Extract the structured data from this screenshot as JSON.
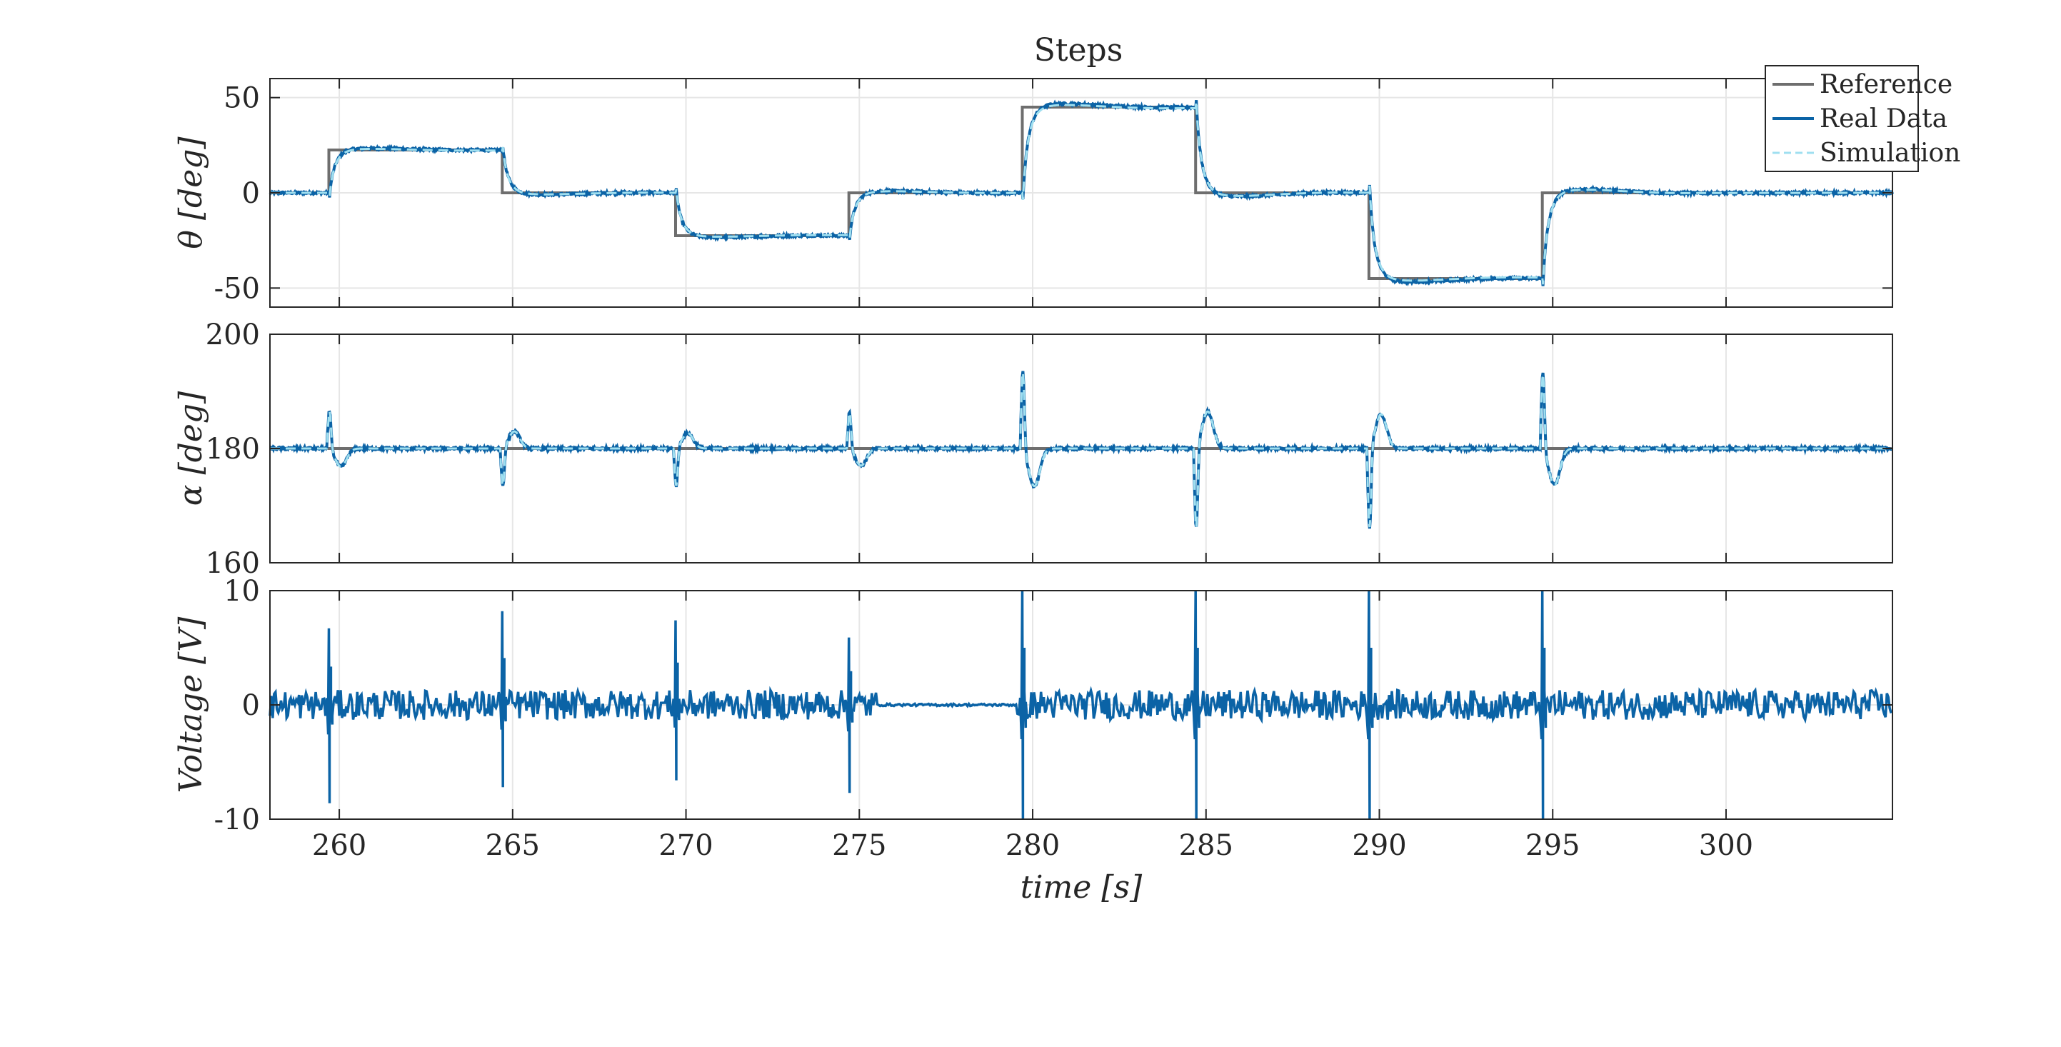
{
  "figure": {
    "title": "Steps"
  },
  "colors": {
    "reference": "#6e6e6e",
    "real": "#0b63a6",
    "simulation": "#9fdff0",
    "axes": "#262626",
    "grid": "#e6e6e6"
  },
  "legend": {
    "placement": "top-right",
    "entries": [
      "Reference",
      "Real Data",
      "Simulation"
    ]
  },
  "chart_data": [
    {
      "type": "line",
      "title": "Steps",
      "xlabel": "",
      "ylabel": "θ [deg]",
      "xlim": [
        258,
        304.8
      ],
      "ylim": [
        -60,
        60
      ],
      "xticks": [
        260,
        265,
        270,
        275,
        280,
        285,
        290,
        295,
        300
      ],
      "yticks": [
        -50,
        0,
        50
      ],
      "ytick_labels": [
        "-50",
        "0",
        "50"
      ],
      "grid": true,
      "steps": {
        "times": [
          258,
          259.7,
          264.7,
          269.7,
          274.7,
          279.7,
          284.7,
          289.7,
          294.7,
          304.8
        ],
        "levels": [
          0,
          22.5,
          0,
          -22.5,
          0,
          45,
          0,
          -45,
          0
        ]
      },
      "series": [
        {
          "name": "Reference"
        },
        {
          "name": "Real Data"
        },
        {
          "name": "Simulation"
        }
      ]
    },
    {
      "type": "line",
      "ylabel": "α [deg]",
      "xlim": [
        258,
        304.8
      ],
      "ylim": [
        160,
        200
      ],
      "yticks": [
        160,
        180,
        200
      ],
      "ytick_labels": [
        "160",
        "180",
        "200"
      ],
      "grid": true,
      "baseline": 180,
      "peaks": [
        {
          "t": 259.7,
          "max": 186.8,
          "min": 176.8
        },
        {
          "t": 264.7,
          "max": 183.0,
          "min": 173.2
        },
        {
          "t": 269.7,
          "max": 182.7,
          "min": 173.2
        },
        {
          "t": 274.7,
          "max": 186.6,
          "min": 177.0
        },
        {
          "t": 279.7,
          "max": 194.0,
          "min": 173.4
        },
        {
          "t": 284.7,
          "max": 186.5,
          "min": 165.6
        },
        {
          "t": 289.7,
          "max": 186.0,
          "min": 165.6
        },
        {
          "t": 294.7,
          "max": 193.7,
          "min": 173.6
        }
      ]
    },
    {
      "type": "line",
      "xlabel": "time [s]",
      "ylabel": "Voltage [V]",
      "xlim": [
        258,
        304.8
      ],
      "ylim": [
        -10,
        10
      ],
      "yticks": [
        -10,
        0,
        10
      ],
      "ytick_labels": [
        "-10",
        "0",
        "10"
      ],
      "grid": true,
      "spikes": [
        {
          "t": 259.7,
          "max": 6.7,
          "min": -8.6
        },
        {
          "t": 264.7,
          "max": 8.2,
          "min": -7.2
        },
        {
          "t": 269.7,
          "max": 7.4,
          "min": -6.6
        },
        {
          "t": 274.7,
          "max": 5.9,
          "min": -7.7
        },
        {
          "t": 279.7,
          "max": 10.0,
          "min": -10.0
        },
        {
          "t": 284.7,
          "max": 10.0,
          "min": -10.0
        },
        {
          "t": 289.7,
          "max": 10.0,
          "min": -10.0
        },
        {
          "t": 294.7,
          "max": 10.0,
          "min": -10.0
        }
      ],
      "noise_amplitude": 1.3,
      "quiet_interval": [
        275.5,
        279.5
      ]
    }
  ]
}
